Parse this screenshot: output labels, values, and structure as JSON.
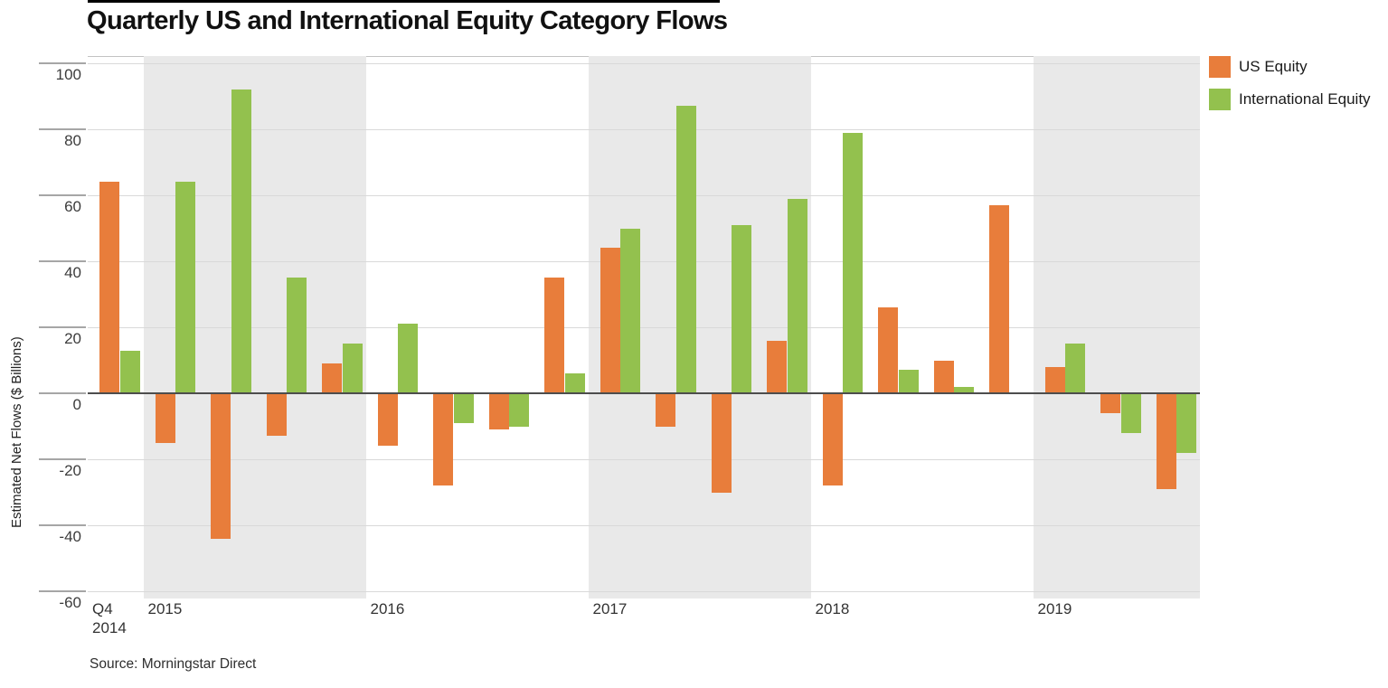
{
  "chart_data": {
    "type": "bar",
    "title": "Quarterly US and International Equity Category Flows",
    "ylabel": "Estimated Net Flows ($ Billions)",
    "source": "Source: Morningstar Direct",
    "ylim": [
      -60,
      100
    ],
    "yticks": [
      100,
      80,
      60,
      40,
      20,
      0,
      -20,
      -40,
      -60
    ],
    "grid": "horizontal",
    "legend_position": "top-right",
    "categories": [
      "Q4 2014",
      "Q1 2015",
      "Q2 2015",
      "Q3 2015",
      "Q4 2015",
      "Q1 2016",
      "Q2 2016",
      "Q3 2016",
      "Q4 2016",
      "Q1 2017",
      "Q2 2017",
      "Q3 2017",
      "Q4 2017",
      "Q1 2018",
      "Q2 2018",
      "Q3 2018",
      "Q4 2018",
      "Q1 2019",
      "Q2 2019",
      "Q3 2019"
    ],
    "series": [
      {
        "name": "US Equity",
        "color": "#E87D3B",
        "values": [
          64,
          -15,
          -44,
          -13,
          9,
          -16,
          -28,
          -11,
          35,
          44,
          -10,
          -30,
          16,
          -28,
          26,
          10,
          57,
          8,
          -6,
          -29
        ]
      },
      {
        "name": "International Equity",
        "color": "#93C14E",
        "values": [
          13,
          64,
          92,
          35,
          15,
          21,
          -9,
          -10,
          6,
          50,
          87,
          51,
          59,
          79,
          7,
          2,
          0,
          15,
          -12,
          -18
        ]
      }
    ],
    "x_groups": [
      {
        "label": "Q4",
        "sublabel": "2014",
        "quarters": 1,
        "shaded": false
      },
      {
        "label": "2015",
        "quarters": 4,
        "shaded": true
      },
      {
        "label": "2016",
        "quarters": 4,
        "shaded": false
      },
      {
        "label": "2017",
        "quarters": 4,
        "shaded": true
      },
      {
        "label": "2018",
        "quarters": 4,
        "shaded": false
      },
      {
        "label": "2019",
        "quarters": 3,
        "shaded": true
      }
    ],
    "colors": {
      "band": "#E9E9E9",
      "gridline": "#D9D9D9",
      "zero_line": "#4D4D4D",
      "top_rule": "#000000"
    }
  }
}
